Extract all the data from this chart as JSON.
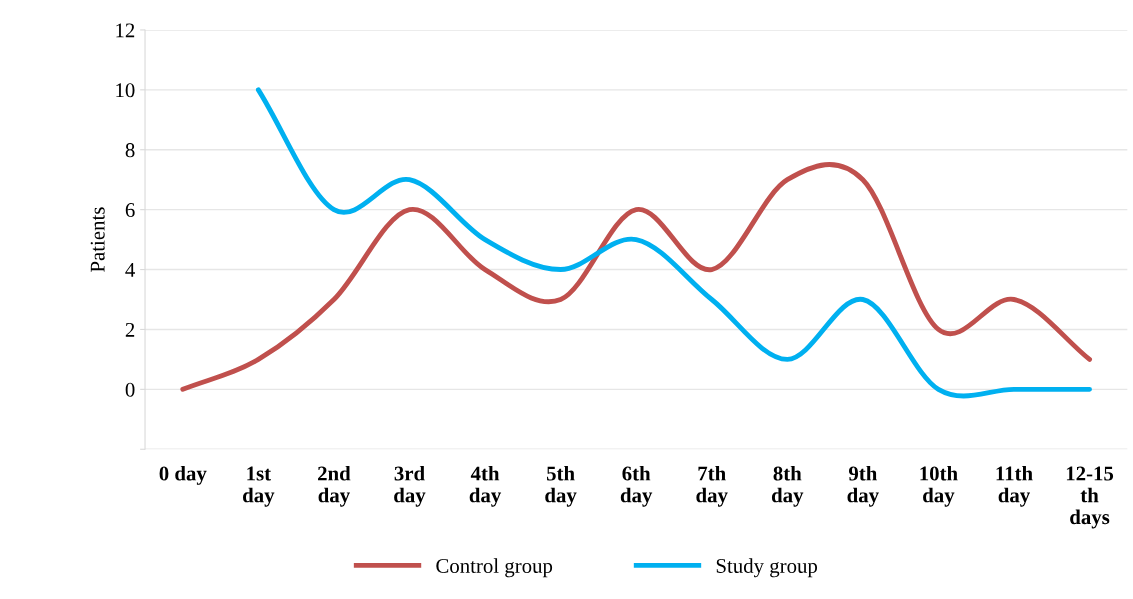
{
  "chart_data": {
    "type": "line",
    "ylabel": "Patients",
    "categories": [
      "0 day",
      "1st\nday",
      "2nd\nday",
      "3rd\nday",
      "4th\nday",
      "5th\nday",
      "6th\nday",
      "7th\nday",
      "8th\nday",
      "9th\nday",
      "10th\nday",
      "11th\nday",
      "12-15\nth\ndays"
    ],
    "series": [
      {
        "name": "Control group",
        "color": "#c0504d",
        "values": [
          0,
          1,
          3,
          6,
          4,
          3,
          6,
          4,
          7,
          7,
          2,
          3,
          1
        ]
      },
      {
        "name": "Study group",
        "color": "#00b0f0",
        "values": [
          null,
          10,
          6,
          7,
          5,
          4,
          5,
          3,
          1,
          3,
          0,
          0,
          0
        ]
      }
    ],
    "ylim": [
      -2,
      12
    ],
    "yticks": [
      {
        "value": -2,
        "label": null
      },
      0,
      2,
      4,
      6,
      8,
      10,
      12
    ],
    "grid": "y",
    "legend": "bottom",
    "marker": "none",
    "line_style": "solid"
  }
}
